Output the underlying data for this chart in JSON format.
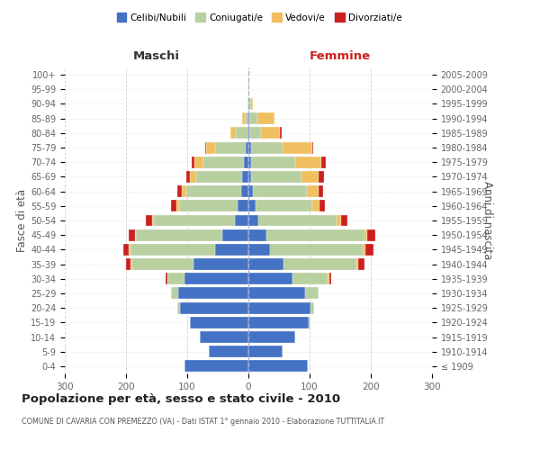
{
  "age_groups": [
    "100+",
    "95-99",
    "90-94",
    "85-89",
    "80-84",
    "75-79",
    "70-74",
    "65-69",
    "60-64",
    "55-59",
    "50-54",
    "45-49",
    "40-44",
    "35-39",
    "30-34",
    "25-29",
    "20-24",
    "15-19",
    "10-14",
    "5-9",
    "0-4"
  ],
  "birth_years": [
    "≤ 1909",
    "1910-1914",
    "1915-1919",
    "1920-1924",
    "1925-1929",
    "1930-1934",
    "1935-1939",
    "1940-1944",
    "1945-1949",
    "1950-1954",
    "1955-1959",
    "1960-1964",
    "1965-1969",
    "1970-1974",
    "1975-1979",
    "1980-1984",
    "1985-1989",
    "1990-1994",
    "1995-1999",
    "2000-2004",
    "2005-2009"
  ],
  "colors": {
    "celibi": "#4472c4",
    "coniugati": "#b8cfa0",
    "vedovi": "#f0c060",
    "divorziati": "#cc2020"
  },
  "males": {
    "celibi": [
      0,
      0,
      0,
      1,
      2,
      5,
      8,
      10,
      12,
      18,
      22,
      42,
      55,
      90,
      105,
      115,
      112,
      95,
      80,
      65,
      105
    ],
    "coniugati": [
      0,
      0,
      1,
      5,
      18,
      50,
      65,
      75,
      90,
      95,
      133,
      142,
      138,
      100,
      28,
      12,
      4,
      1,
      0,
      0,
      0
    ],
    "vedovi": [
      0,
      0,
      0,
      4,
      10,
      14,
      15,
      10,
      7,
      4,
      2,
      2,
      2,
      2,
      0,
      0,
      0,
      0,
      0,
      0,
      0
    ],
    "divorziati": [
      0,
      0,
      0,
      0,
      0,
      2,
      4,
      6,
      7,
      9,
      10,
      10,
      10,
      8,
      2,
      0,
      0,
      0,
      0,
      0,
      0
    ]
  },
  "females": {
    "celibi": [
      0,
      0,
      0,
      1,
      2,
      4,
      5,
      5,
      8,
      12,
      16,
      30,
      35,
      58,
      72,
      92,
      102,
      98,
      76,
      56,
      97
    ],
    "coniugati": [
      0,
      1,
      4,
      14,
      18,
      52,
      72,
      82,
      88,
      92,
      128,
      160,
      152,
      118,
      58,
      22,
      6,
      3,
      0,
      0,
      0
    ],
    "vedovi": [
      0,
      1,
      4,
      28,
      32,
      48,
      42,
      28,
      18,
      12,
      8,
      4,
      4,
      4,
      2,
      0,
      0,
      0,
      0,
      0,
      0
    ],
    "divorziati": [
      0,
      0,
      0,
      0,
      2,
      2,
      7,
      9,
      8,
      9,
      10,
      14,
      14,
      9,
      4,
      1,
      0,
      0,
      0,
      0,
      0
    ]
  },
  "title": "Popolazione per età, sesso e stato civile - 2010",
  "subtitle": "COMUNE DI CAVARIA CON PREMEZZO (VA) - Dati ISTAT 1° gennaio 2010 - Elaborazione TUTTITALIA.IT",
  "xlabel_left": "Maschi",
  "xlabel_right": "Femmine",
  "ylabel_left": "Fasce di età",
  "ylabel_right": "Anni di nascita",
  "xlim": 300,
  "legend_labels": [
    "Celibi/Nubili",
    "Coniugati/e",
    "Vedovi/e",
    "Divorziati/e"
  ],
  "bg_color": "#ffffff",
  "grid_color": "#cccccc",
  "bar_height": 0.8
}
